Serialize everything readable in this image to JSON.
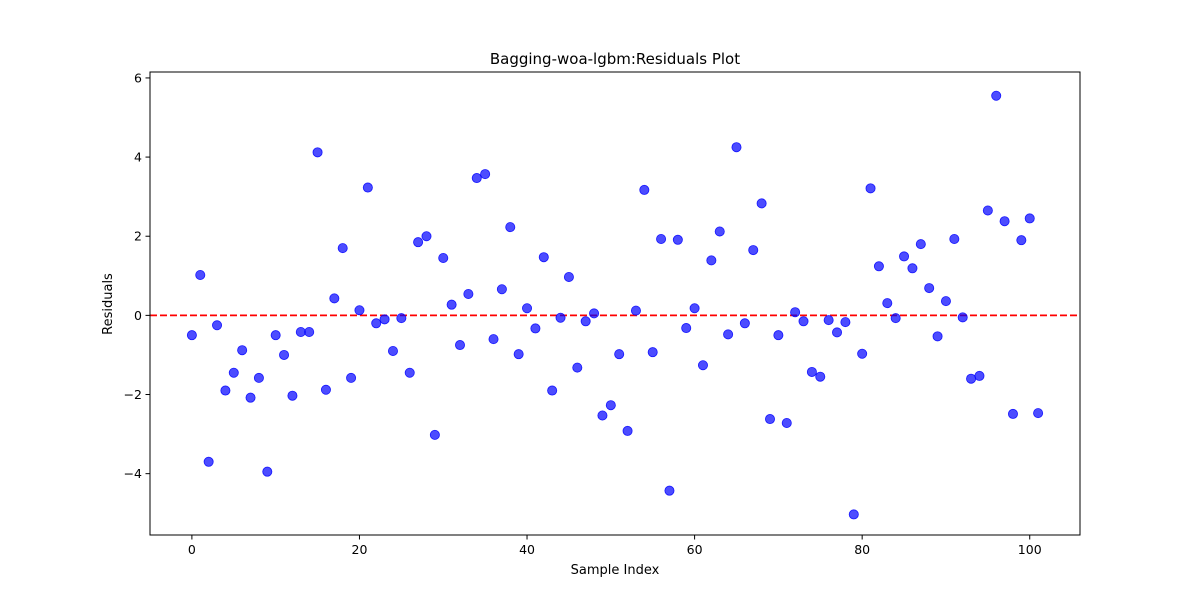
{
  "chart_data": {
    "type": "scatter",
    "title": "Bagging-woa-lgbm:Residuals Plot",
    "xlabel": "Sample Index",
    "ylabel": "Residuals",
    "xlim": [
      -5,
      106
    ],
    "ylim": [
      -5.55,
      6.15
    ],
    "xticks": [
      0,
      20,
      40,
      60,
      80,
      100
    ],
    "xtick_labels": [
      "0",
      "20",
      "40",
      "60",
      "80",
      "100"
    ],
    "yticks": [
      -4,
      -2,
      0,
      2,
      4,
      6
    ],
    "ytick_labels": [
      "−4",
      "−2",
      "0",
      "2",
      "4",
      "6"
    ],
    "grid": false,
    "point_color": "#0000ff",
    "reference_line": {
      "y": 0,
      "color": "#ff0000",
      "style": "dashed"
    },
    "x": [
      0,
      1,
      2,
      3,
      4,
      5,
      6,
      7,
      8,
      9,
      10,
      11,
      12,
      13,
      14,
      15,
      16,
      17,
      18,
      19,
      20,
      21,
      22,
      23,
      24,
      25,
      26,
      27,
      28,
      29,
      30,
      31,
      32,
      33,
      34,
      35,
      36,
      37,
      38,
      39,
      40,
      41,
      42,
      43,
      44,
      45,
      46,
      47,
      48,
      49,
      50,
      51,
      52,
      53,
      54,
      55,
      56,
      57,
      58,
      59,
      60,
      61,
      62,
      63,
      64,
      65,
      66,
      67,
      68,
      69,
      70,
      71,
      72,
      73,
      74,
      75,
      76,
      77,
      78,
      79,
      80,
      81,
      82,
      83,
      84,
      85,
      86,
      87,
      88,
      89,
      90,
      91,
      92,
      93,
      94,
      95,
      96,
      97,
      98,
      99,
      100,
      101
    ],
    "y": [
      -0.5,
      1.02,
      -3.7,
      -0.25,
      -1.9,
      -1.45,
      -0.88,
      -2.08,
      -1.58,
      -3.95,
      -0.5,
      -1.0,
      -2.03,
      -0.42,
      -0.42,
      4.12,
      -1.88,
      0.43,
      1.7,
      -1.58,
      0.13,
      3.23,
      -0.2,
      -0.1,
      -0.9,
      -0.07,
      -1.45,
      1.85,
      2.0,
      -3.02,
      1.45,
      0.27,
      -0.75,
      0.54,
      3.47,
      3.57,
      -0.6,
      0.66,
      2.23,
      -0.98,
      0.18,
      -0.33,
      1.47,
      -1.9,
      -0.06,
      0.97,
      -1.32,
      -0.15,
      0.05,
      -2.53,
      -2.27,
      -0.98,
      -2.92,
      0.12,
      3.17,
      -0.93,
      1.93,
      -4.43,
      1.91,
      -0.32,
      0.18,
      -1.26,
      1.39,
      2.12,
      -0.48,
      4.25,
      -0.2,
      1.65,
      2.83,
      -2.62,
      -0.5,
      -2.72,
      0.08,
      -0.15,
      -1.43,
      -1.55,
      -0.12,
      -0.43,
      -0.17,
      -5.03,
      -0.97,
      3.21,
      1.24,
      0.31,
      -0.07,
      1.49,
      1.19,
      1.8,
      0.69,
      -0.53,
      0.36,
      1.93,
      -0.05,
      -1.6,
      -1.53,
      2.65,
      5.55,
      2.38,
      -2.49,
      1.9,
      2.45,
      -2.47
    ]
  }
}
